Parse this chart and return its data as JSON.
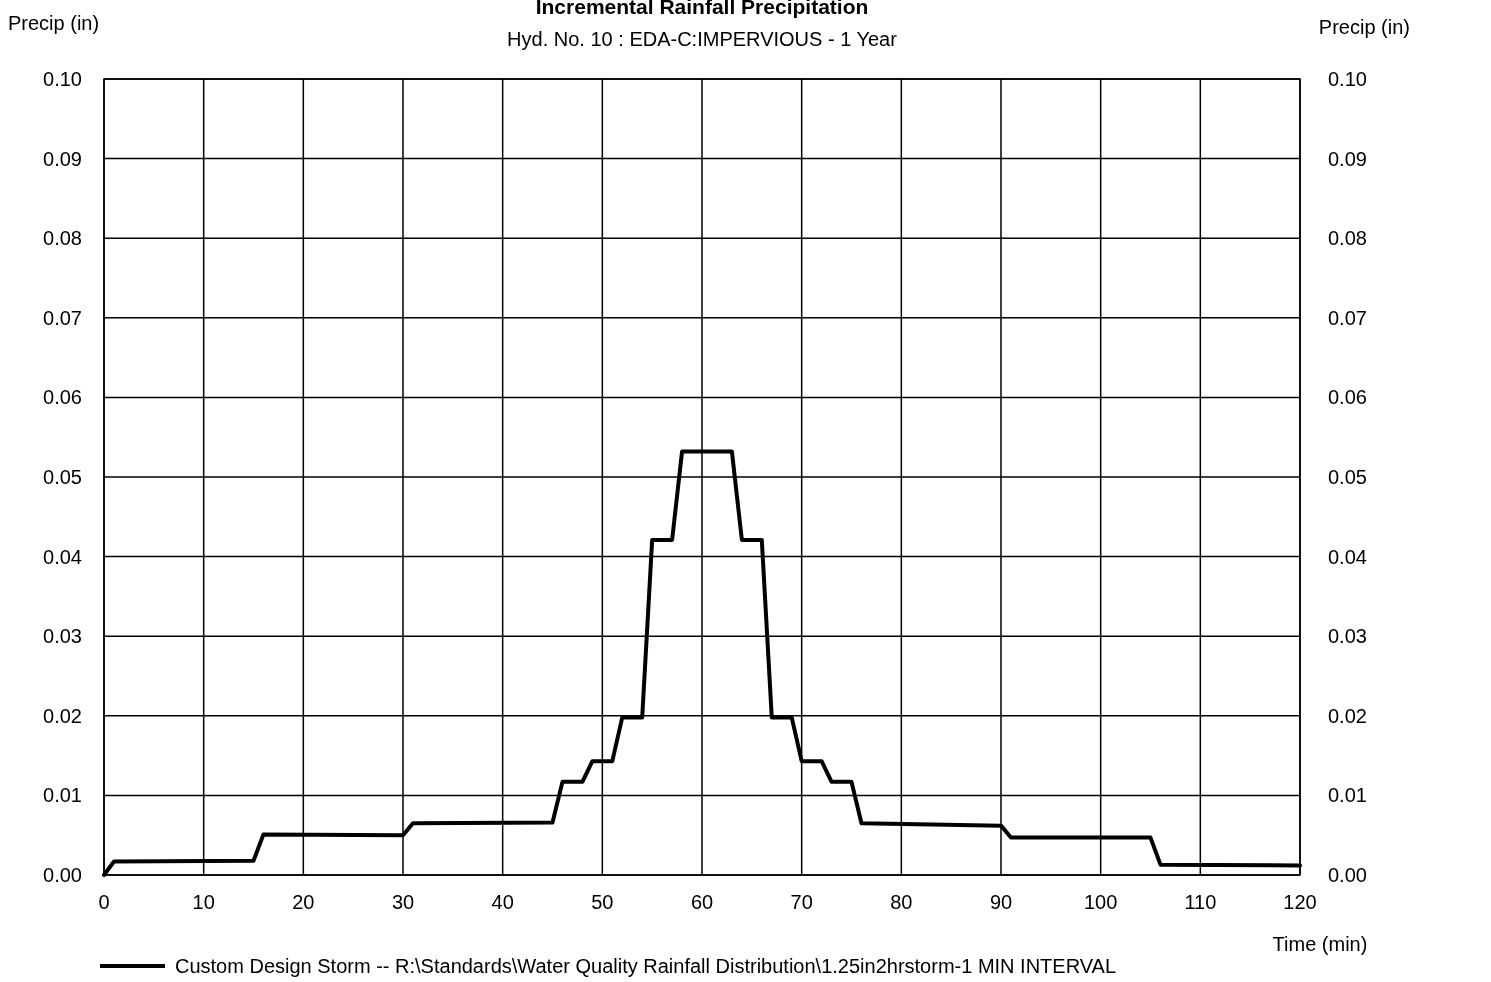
{
  "chart_data": {
    "type": "line",
    "title": "Incremental Rainfall Precipitation",
    "subtitle": "Hyd. No. 10 : EDA-C:IMPERVIOUS - 1 Year",
    "xlabel": "Time (min)",
    "ylabel": "Precip (in)",
    "y2label": "Precip (in)",
    "x": [
      0,
      1,
      15,
      16,
      30,
      31,
      45,
      46,
      48,
      49,
      51,
      52,
      54,
      55,
      57,
      58,
      63,
      64,
      66,
      67,
      69,
      70,
      72,
      73,
      75,
      76,
      90,
      91,
      105,
      106,
      120
    ],
    "series": [
      {
        "name": "Custom Design Storm -- R:\\Standards\\Water Quality Rainfall Distribution\\1.25in2hrstorm-1 MIN INTERVAL",
        "color": "#000000",
        "values": [
          0,
          0.0017,
          0.0018,
          0.0051,
          0.005,
          0.0065,
          0.0066,
          0.0117,
          0.0117,
          0.0143,
          0.0143,
          0.0198,
          0.0198,
          0.0421,
          0.0421,
          0.0532,
          0.0532,
          0.0421,
          0.0421,
          0.0198,
          0.0198,
          0.0143,
          0.0143,
          0.0117,
          0.0117,
          0.0065,
          0.0062,
          0.0047,
          0.0047,
          0.0013,
          0.0012
        ]
      }
    ],
    "xlim": [
      0,
      120
    ],
    "xticks": [
      0,
      10,
      20,
      30,
      40,
      50,
      60,
      70,
      80,
      90,
      100,
      110,
      120
    ],
    "ylim": [
      0,
      0.1
    ],
    "yticks": [
      {
        "value": 0,
        "label": "0.00"
      },
      {
        "value": 0.01,
        "label": "0.01"
      },
      {
        "value": 0.02,
        "label": "0.02"
      },
      {
        "value": 0.03,
        "label": "0.03"
      },
      {
        "value": 0.04,
        "label": "0.04"
      },
      {
        "value": 0.05,
        "label": "0.05"
      },
      {
        "value": 0.06,
        "label": "0.06"
      },
      {
        "value": 0.07,
        "label": "0.07"
      },
      {
        "value": 0.08,
        "label": "0.08"
      },
      {
        "value": 0.09,
        "label": "0.09"
      },
      {
        "value": 0.1,
        "label": "0.10"
      }
    ],
    "y2lim": [
      0,
      0.1
    ],
    "y2ticks": [
      {
        "value": 0,
        "label": "0.00"
      },
      {
        "value": 0.01,
        "label": "0.01"
      },
      {
        "value": 0.02,
        "label": "0.02"
      },
      {
        "value": 0.03,
        "label": "0.03"
      },
      {
        "value": 0.04,
        "label": "0.04"
      },
      {
        "value": 0.05,
        "label": "0.05"
      },
      {
        "value": 0.06,
        "label": "0.06"
      },
      {
        "value": 0.07,
        "label": "0.07"
      },
      {
        "value": 0.08,
        "label": "0.08"
      },
      {
        "value": 0.09,
        "label": "0.09"
      },
      {
        "value": 0.1,
        "label": "0.10"
      }
    ],
    "grid": true,
    "legend": "bottom",
    "marker": "none",
    "line_style": "solid"
  }
}
